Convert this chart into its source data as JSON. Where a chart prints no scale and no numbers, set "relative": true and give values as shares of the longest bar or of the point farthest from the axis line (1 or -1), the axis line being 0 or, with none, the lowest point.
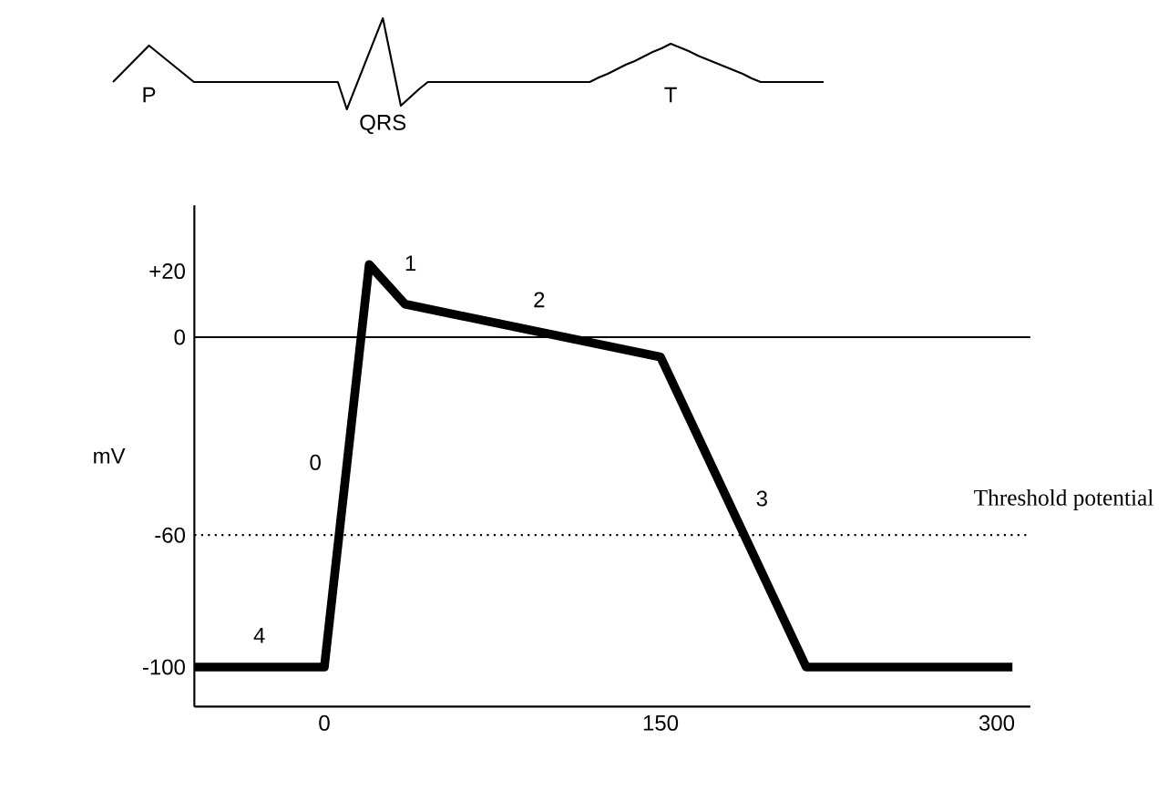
{
  "chart_data": [
    {
      "type": "line",
      "relative": true,
      "categories": [
        null,
        null,
        null,
        null,
        null,
        null,
        null,
        null,
        null,
        null,
        null,
        null,
        null,
        null,
        null,
        null,
        null,
        null,
        null,
        null,
        null,
        null,
        null,
        null,
        null,
        null,
        null,
        null,
        null,
        null,
        null,
        null,
        null,
        null,
        null,
        null,
        null,
        null,
        null,
        null,
        null,
        null,
        null,
        null,
        null,
        null,
        null,
        null,
        null,
        null,
        null,
        null,
        null,
        null,
        null,
        null,
        null,
        null,
        null,
        null,
        null,
        null,
        null,
        null,
        null,
        null,
        null,
        null,
        null,
        null,
        null,
        null,
        null,
        null,
        null,
        null,
        null,
        null,
        null,
        null
      ],
      "values": [
        0.3,
        0.4,
        0.5,
        0.6,
        0.7,
        0.62,
        0.54,
        0.46,
        0.38,
        0.3,
        0.3,
        0.3,
        0.3,
        0.3,
        0.3,
        0.3,
        0.3,
        0.3,
        0.3,
        0.3,
        0.3,
        0.3,
        0.3,
        0.3,
        0.3,
        0.3,
        0,
        0.25,
        0.5,
        0.75,
        1,
        0.52,
        0.04,
        0.13,
        0.22,
        0.3,
        0.3,
        0.3,
        0.3,
        0.3,
        0.3,
        0.3,
        0.3,
        0.3,
        0.3,
        0.3,
        0.3,
        0.3,
        0.3,
        0.3,
        0.3,
        0.3,
        0.3,
        0.3,
        0.35,
        0.39,
        0.44,
        0.49,
        0.53,
        0.58,
        0.63,
        0.67,
        0.72,
        0.68,
        0.64,
        0.59,
        0.55,
        0.51,
        0.47,
        0.43,
        0.39,
        0.34,
        0.3,
        0.3,
        0.3,
        0.3,
        0.3,
        0.3,
        0.3,
        0.3
      ],
      "color": "#000000",
      "marker": "none",
      "line_style": "solid",
      "annotations": [
        "P",
        "QRS",
        "T"
      ]
    },
    {
      "type": "line",
      "x": [
        -58,
        0,
        20,
        36,
        150,
        215,
        307
      ],
      "values": [
        -100,
        -100,
        22,
        10,
        -6,
        -100,
        -100
      ],
      "color": "#000000",
      "xlim": [
        -58,
        315
      ],
      "ylim": [
        -112,
        40
      ],
      "xticks": [
        0,
        150,
        300
      ],
      "yticks": [
        {
          "value": 20,
          "label": "+20"
        },
        0,
        -60,
        -100
      ],
      "ylabel": "mV",
      "marker": "none",
      "line_style": "solid",
      "ref_lines": [
        {
          "axis": "y",
          "value": 0,
          "line_style": "solid"
        },
        {
          "axis": "y",
          "value": -60,
          "label": "Threshold potential",
          "line_style": "dotted"
        }
      ],
      "annotations": [
        "4",
        "0",
        "1",
        "2",
        "3"
      ]
    }
  ]
}
